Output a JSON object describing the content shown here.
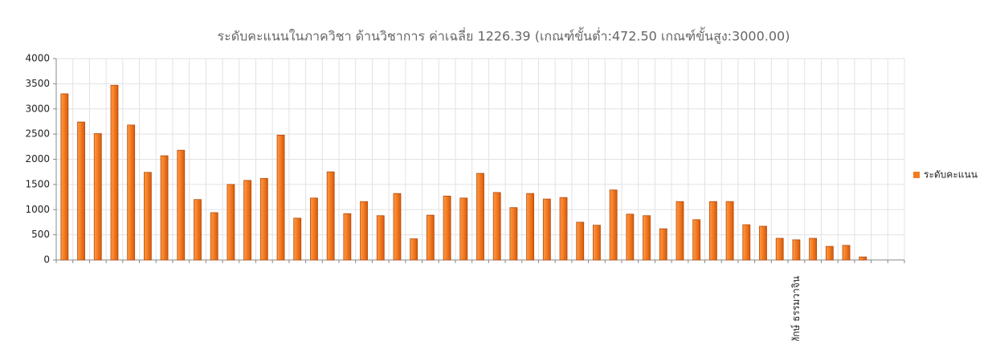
{
  "chart_data": {
    "type": "bar",
    "title": "ระดับคะแนนในภาควิชา ด้านวิชาการ ค่าเฉลี่ย 1226.39 (เกณฑ์ขั้นต่ำ:472.50 เกณฑ์ขั้นสูง:3000.00)",
    "categories": [
      null,
      null,
      null,
      null,
      null,
      null,
      null,
      null,
      null,
      null,
      null,
      null,
      null,
      null,
      null,
      null,
      null,
      null,
      null,
      null,
      null,
      null,
      null,
      null,
      null,
      null,
      null,
      null,
      null,
      null,
      null,
      null,
      null,
      null,
      null,
      null,
      null,
      null,
      null,
      null,
      null,
      null,
      null,
      null,
      "พิทักษ์ ธรรมวาจิน",
      null,
      null,
      null,
      null,
      null,
      null
    ],
    "series": [
      {
        "name": "ระดับคะแนน",
        "color": "#f47a20",
        "values": [
          3300,
          2740,
          2510,
          3470,
          2680,
          1740,
          2070,
          2180,
          1200,
          940,
          1500,
          1580,
          1620,
          2480,
          830,
          1230,
          1750,
          920,
          1160,
          880,
          1320,
          420,
          890,
          1270,
          1230,
          1720,
          1340,
          1040,
          1320,
          1210,
          1240,
          750,
          690,
          1390,
          910,
          880,
          620,
          1160,
          800,
          1160,
          1160,
          700,
          670,
          430,
          400,
          430,
          270,
          290,
          60,
          null,
          null
        ]
      }
    ],
    "ylim": [
      0,
      4000
    ],
    "yticks": [
      0,
      500,
      1000,
      1500,
      2000,
      2500,
      3000,
      3500,
      4000
    ],
    "grid": true,
    "legend": "right"
  }
}
